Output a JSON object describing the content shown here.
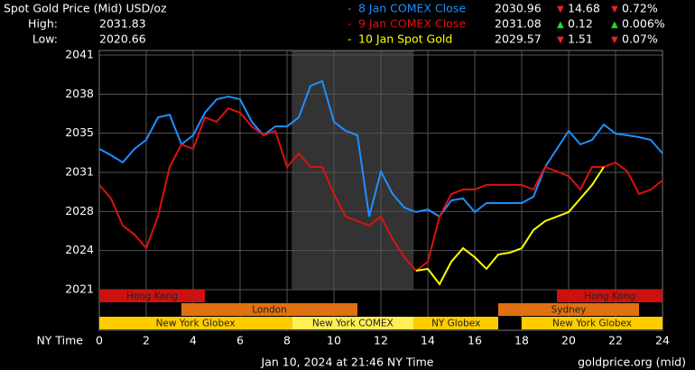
{
  "chart_data": {
    "type": "line",
    "title": "Spot Gold Price (Mid) USD/oz",
    "high_label": "High:",
    "high": 2031.83,
    "low_label": "Low:",
    "low": 2020.66,
    "x_label": "NY Time",
    "footer": "Jan 10, 2024 at 21:46 NY Time",
    "source": "goldprice.org (mid)",
    "x": [
      0,
      0.5,
      1,
      1.5,
      2,
      2.5,
      3,
      3.5,
      4,
      4.5,
      5,
      5.5,
      6,
      6.5,
      7,
      7.5,
      8,
      8.5,
      9,
      9.5,
      10,
      10.5,
      11,
      11.5,
      12,
      12.5,
      13,
      13.5,
      14,
      14.5,
      15,
      15.5,
      16,
      16.5,
      17,
      17.5,
      18,
      18.5,
      19,
      19.5,
      20,
      20.5,
      21,
      21.5,
      22,
      22.5,
      23,
      23.5,
      24
    ],
    "xlim": [
      0,
      24
    ],
    "xticks": [
      0,
      2,
      4,
      6,
      8,
      10,
      12,
      14,
      16,
      18,
      20,
      22,
      24
    ],
    "ylim": [
      2020.9,
      2041.42
    ],
    "yticks": [
      {
        "value": 2020.9,
        "label": "2021"
      },
      {
        "value": 2024.32,
        "label": "2024"
      },
      {
        "value": 2027.74,
        "label": "2028"
      },
      {
        "value": 2031.16,
        "label": "2031"
      },
      {
        "value": 2034.58,
        "label": "2035"
      },
      {
        "value": 2038.0,
        "label": "2038"
      },
      {
        "value": 2041.42,
        "label": "2041"
      }
    ],
    "grid": true,
    "sessions": [
      "Hong Kong",
      "London",
      "New York Globex",
      "New York COMEX",
      "NY Globex",
      "Sydney",
      "Hong Kong",
      "New York Globex"
    ],
    "series": [
      {
        "name": "8 Jan COMEX Close",
        "color": "#1e90ff",
        "close": 2030.96,
        "change": "14.68",
        "change_pct": "0.72%",
        "direction": "down",
        "values": [
          2033.21,
          2032.66,
          2032.03,
          2033.21,
          2034.0,
          2035.97,
          2036.21,
          2033.61,
          2034.4,
          2036.37,
          2037.55,
          2037.79,
          2037.55,
          2035.58,
          2034.4,
          2035.18,
          2035.18,
          2035.97,
          2038.73,
          2039.13,
          2035.58,
          2034.79,
          2034.4,
          2027.29,
          2031.24,
          2029.27,
          2028.08,
          2027.69,
          2027.92,
          2027.29,
          2028.71,
          2028.87,
          2027.69,
          2028.48,
          2028.48,
          2028.48,
          2028.48,
          2029.03,
          2031.63,
          2033.21,
          2034.79,
          2033.61,
          2034.0,
          2035.34,
          2034.55,
          2034.4,
          2034.24,
          2034.0,
          2032.82
        ]
      },
      {
        "name": "9 Jan COMEX Close",
        "color": "#dd1111",
        "close": 2031.08,
        "change": "0.12",
        "change_pct": "0.006%",
        "direction": "up",
        "values": [
          2030.06,
          2028.87,
          2026.51,
          2025.72,
          2024.53,
          2027.29,
          2031.63,
          2033.61,
          2033.21,
          2035.97,
          2035.58,
          2036.76,
          2036.37,
          2035.18,
          2034.4,
          2034.79,
          2031.63,
          2032.82,
          2031.63,
          2031.63,
          2029.27,
          2027.29,
          2026.9,
          2026.51,
          2027.29,
          2025.32,
          2023.74,
          2022.56,
          2023.35,
          2027.29,
          2029.27,
          2029.66,
          2029.66,
          2030.06,
          2030.06,
          2030.06,
          2030.06,
          2029.66,
          2031.63,
          2031.24,
          2030.84,
          2029.66,
          2031.63,
          2031.63,
          2032.03,
          2031.24,
          2029.27,
          2029.66,
          2030.45
        ]
      },
      {
        "name": "10 Jan Spot Gold",
        "color": "#ffff00",
        "close": 2029.57,
        "change": "1.51",
        "change_pct": "0.07%",
        "direction": "down",
        "values": [
          null,
          null,
          null,
          null,
          null,
          null,
          null,
          null,
          null,
          null,
          null,
          null,
          null,
          null,
          null,
          null,
          null,
          null,
          null,
          null,
          null,
          null,
          null,
          null,
          null,
          null,
          null,
          2022.56,
          2022.72,
          2021.38,
          2023.35,
          2024.53,
          2023.74,
          2022.72,
          2023.98,
          2024.14,
          2024.53,
          2026.11,
          2026.9,
          2027.29,
          2027.69,
          2028.87,
          2030.06,
          2031.63,
          null,
          null,
          null,
          null,
          null
        ]
      }
    ]
  }
}
